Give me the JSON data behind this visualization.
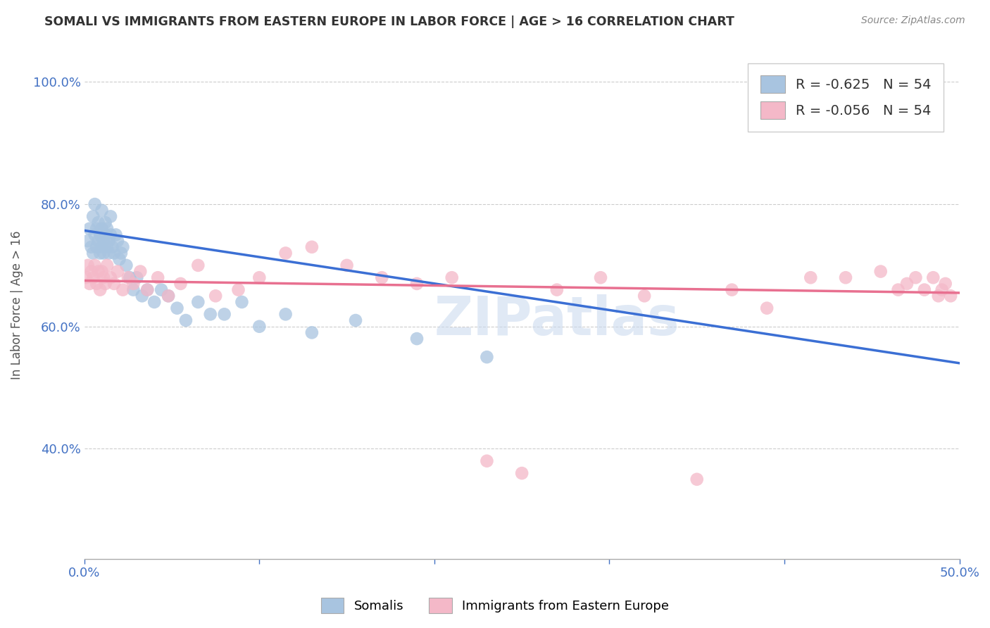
{
  "title": "SOMALI VS IMMIGRANTS FROM EASTERN EUROPE IN LABOR FORCE | AGE > 16 CORRELATION CHART",
  "source": "Source: ZipAtlas.com",
  "ylabel": "In Labor Force | Age > 16",
  "x_min": 0.0,
  "x_max": 0.5,
  "y_min": 0.22,
  "y_max": 1.05,
  "x_ticks": [
    0.0,
    0.1,
    0.2,
    0.3,
    0.4,
    0.5
  ],
  "x_tick_labels": [
    "0.0%",
    "",
    "",
    "",
    "",
    "50.0%"
  ],
  "y_ticks": [
    0.4,
    0.6,
    0.8,
    1.0
  ],
  "y_tick_labels": [
    "40.0%",
    "60.0%",
    "80.0%",
    "100.0%"
  ],
  "somali_color": "#a8c4e0",
  "easterneu_color": "#f4b8c8",
  "somali_line_color": "#3b6fd4",
  "easterneu_line_color": "#e87090",
  "legend_label_1": "R = -0.625   N = 54",
  "legend_label_2": "R = -0.056   N = 54",
  "legend_1_color": "#a8c4e0",
  "legend_2_color": "#f4b8c8",
  "bottom_label_1": "Somalis",
  "bottom_label_2": "Immigrants from Eastern Europe",
  "somali_x": [
    0.002,
    0.003,
    0.004,
    0.005,
    0.005,
    0.006,
    0.006,
    0.007,
    0.007,
    0.008,
    0.008,
    0.009,
    0.009,
    0.01,
    0.01,
    0.01,
    0.011,
    0.011,
    0.012,
    0.012,
    0.013,
    0.013,
    0.014,
    0.014,
    0.015,
    0.015,
    0.016,
    0.017,
    0.018,
    0.019,
    0.02,
    0.021,
    0.022,
    0.024,
    0.026,
    0.028,
    0.03,
    0.033,
    0.036,
    0.04,
    0.044,
    0.048,
    0.053,
    0.058,
    0.065,
    0.072,
    0.08,
    0.09,
    0.1,
    0.115,
    0.13,
    0.155,
    0.19,
    0.23
  ],
  "somali_y": [
    0.74,
    0.76,
    0.73,
    0.78,
    0.72,
    0.75,
    0.8,
    0.73,
    0.76,
    0.74,
    0.77,
    0.72,
    0.75,
    0.73,
    0.76,
    0.79,
    0.74,
    0.72,
    0.75,
    0.77,
    0.73,
    0.76,
    0.74,
    0.72,
    0.78,
    0.75,
    0.73,
    0.72,
    0.75,
    0.74,
    0.71,
    0.72,
    0.73,
    0.7,
    0.68,
    0.66,
    0.68,
    0.65,
    0.66,
    0.64,
    0.66,
    0.65,
    0.63,
    0.61,
    0.64,
    0.62,
    0.62,
    0.64,
    0.6,
    0.62,
    0.59,
    0.61,
    0.58,
    0.55
  ],
  "easterneu_x": [
    0.001,
    0.002,
    0.003,
    0.004,
    0.005,
    0.006,
    0.007,
    0.008,
    0.009,
    0.01,
    0.011,
    0.012,
    0.013,
    0.015,
    0.017,
    0.019,
    0.022,
    0.025,
    0.028,
    0.032,
    0.036,
    0.042,
    0.048,
    0.055,
    0.065,
    0.075,
    0.088,
    0.1,
    0.115,
    0.13,
    0.15,
    0.17,
    0.19,
    0.21,
    0.23,
    0.25,
    0.27,
    0.295,
    0.32,
    0.35,
    0.37,
    0.39,
    0.415,
    0.435,
    0.455,
    0.465,
    0.47,
    0.475,
    0.48,
    0.485,
    0.488,
    0.49,
    0.492,
    0.495
  ],
  "easterneu_y": [
    0.68,
    0.7,
    0.67,
    0.69,
    0.68,
    0.7,
    0.67,
    0.69,
    0.66,
    0.69,
    0.68,
    0.67,
    0.7,
    0.68,
    0.67,
    0.69,
    0.66,
    0.68,
    0.67,
    0.69,
    0.66,
    0.68,
    0.65,
    0.67,
    0.7,
    0.65,
    0.66,
    0.68,
    0.72,
    0.73,
    0.7,
    0.68,
    0.67,
    0.68,
    0.38,
    0.36,
    0.66,
    0.68,
    0.65,
    0.35,
    0.66,
    0.63,
    0.68,
    0.68,
    0.69,
    0.66,
    0.67,
    0.68,
    0.66,
    0.68,
    0.65,
    0.66,
    0.67,
    0.65
  ],
  "somali_trend_x": [
    0.0,
    0.5
  ],
  "somali_trend_y": [
    0.757,
    0.54
  ],
  "easterneu_trend_x": [
    0.0,
    0.5
  ],
  "easterneu_trend_y": [
    0.675,
    0.655
  ],
  "watermark": "ZIPatlas",
  "background_color": "#ffffff",
  "grid_color": "#cccccc"
}
